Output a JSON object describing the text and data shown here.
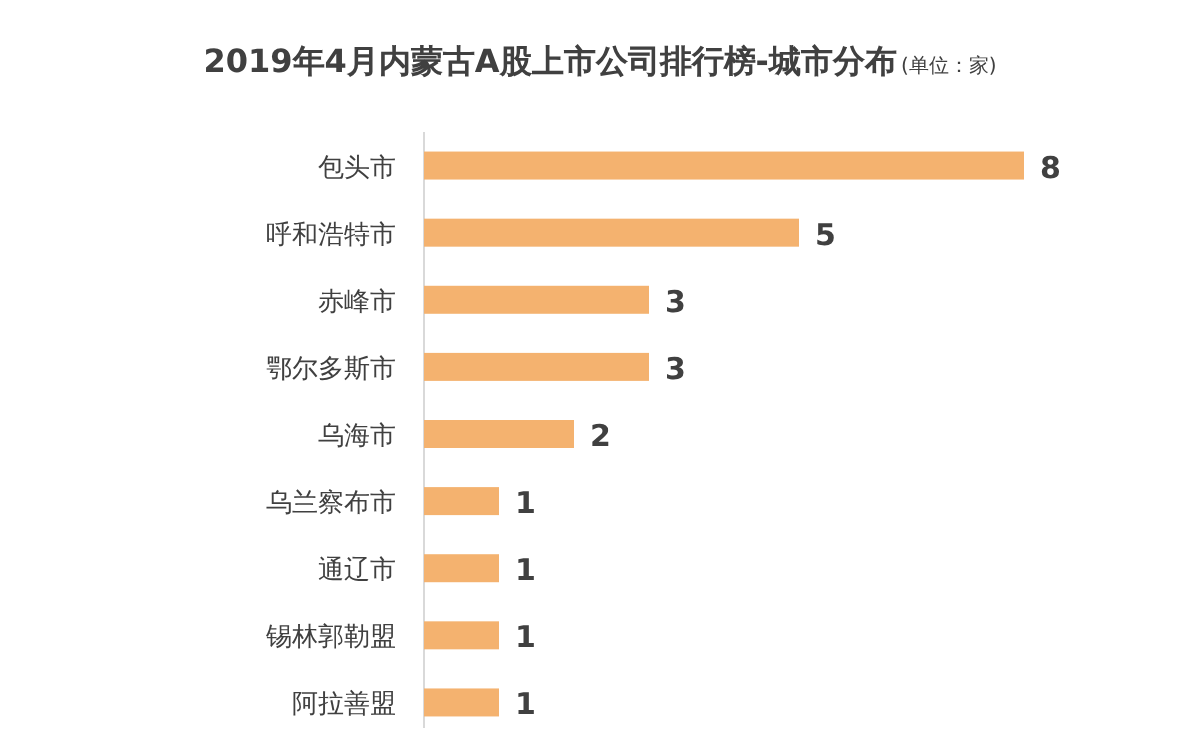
{
  "chart_data": {
    "type": "bar",
    "orientation": "horizontal",
    "title": "2019年4月内蒙古A股上市公司排行榜-城市分布",
    "subtitle": "(单位：家)",
    "categories": [
      "包头市",
      "呼和浩特市",
      "赤峰市",
      "鄂尔多斯市",
      "乌海市",
      "乌兰察布市",
      "通辽市",
      "锡林郭勒盟",
      "阿拉善盟"
    ],
    "values": [
      8,
      5,
      3,
      3,
      2,
      1,
      1,
      1,
      1
    ],
    "color": "#f4b26f",
    "data_labels": true
  }
}
